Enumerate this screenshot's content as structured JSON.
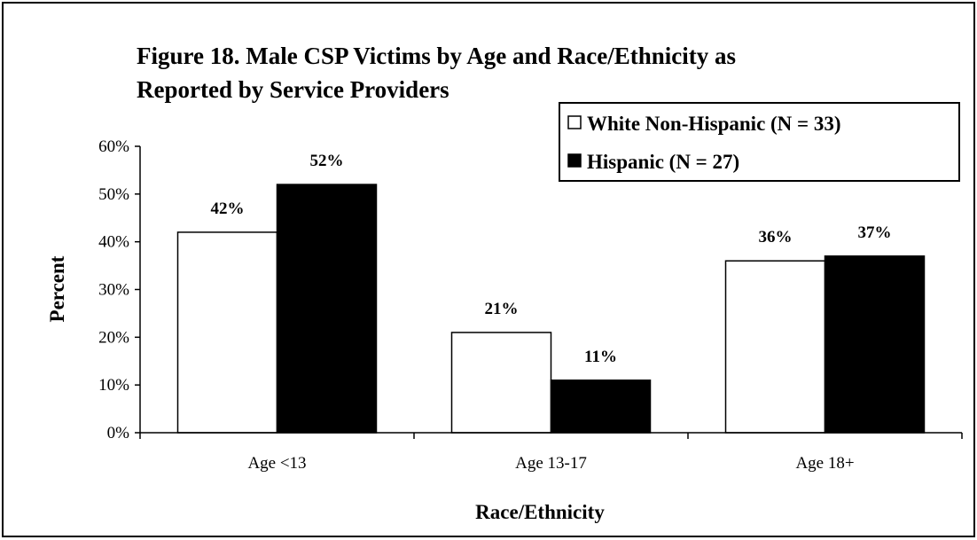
{
  "chart_data": {
    "type": "bar",
    "title_line1": "Figure 18.  Male CSP Victims by Age and Race/Ethnicity as",
    "title_line2": "Reported by Service Providers",
    "xlabel": "Race/Ethnicity",
    "ylabel": "Percent",
    "categories": [
      "Age  <13",
      "Age 13-17",
      "Age 18+"
    ],
    "series": [
      {
        "name": "White Non-Hispanic  (N = 33)",
        "values": [
          42,
          21,
          36
        ],
        "labels": [
          "42%",
          "21%",
          "36%"
        ],
        "color": "#ffffff"
      },
      {
        "name": "Hispanic  (N = 27)",
        "values": [
          52,
          11,
          37
        ],
        "labels": [
          "52%",
          "11%",
          "37%"
        ],
        "color": "#000000"
      }
    ],
    "ylim": [
      0,
      60
    ],
    "yticks": [
      0,
      10,
      20,
      30,
      40,
      50,
      60
    ],
    "ytick_labels": [
      "0%",
      "10%",
      "20%",
      "30%",
      "40%",
      "50%",
      "60%"
    ],
    "grid": false,
    "legend_position": "top-right"
  }
}
